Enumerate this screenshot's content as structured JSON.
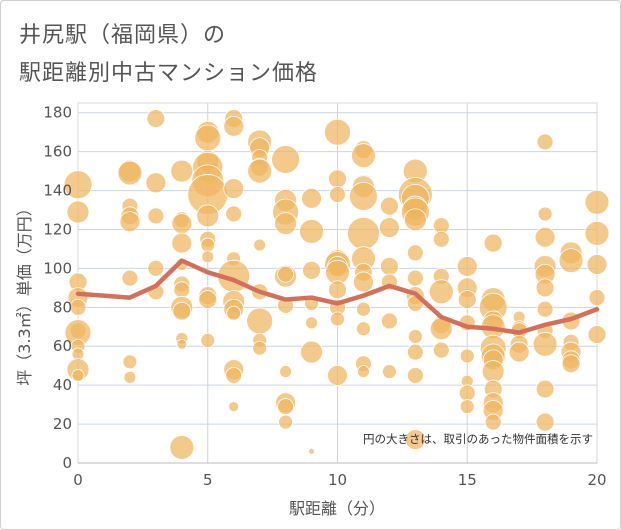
{
  "title_line1": "井尻駅（福岡県）の",
  "title_line2": "駅距離別中古マンション価格",
  "chart_data": {
    "type": "scatter",
    "xlabel": "駅距離（分）",
    "ylabel": "坪（3.3㎡）単価（万円）",
    "xlim": [
      0,
      20
    ],
    "ylim": [
      0,
      185
    ],
    "xticks": [
      0,
      5,
      10,
      15,
      20
    ],
    "yticks": [
      0,
      20,
      40,
      60,
      80,
      100,
      120,
      140,
      160,
      180
    ],
    "grid": true,
    "note": "円の大きさは、取引のあった物件面積を示す",
    "colors": {
      "bubble": "#f0b560",
      "line": "#d4705a",
      "grid": "#c9d6e6"
    },
    "bubble_series": {
      "x": [
        0,
        0,
        0,
        0,
        0,
        0,
        0,
        0,
        0,
        0,
        0,
        2,
        2,
        2,
        2,
        2,
        2,
        2,
        2,
        3,
        3,
        3,
        3,
        3,
        4,
        4,
        4,
        4,
        4,
        4,
        4,
        4,
        4,
        4,
        4,
        4,
        5,
        5,
        5,
        5,
        5,
        5,
        5,
        5,
        5,
        5,
        5,
        5,
        5,
        6,
        6,
        6,
        6,
        6,
        6,
        6,
        6,
        6,
        6,
        6,
        6,
        7,
        7,
        7,
        7,
        7,
        7,
        7,
        7,
        7,
        7,
        8,
        8,
        8,
        8,
        8,
        8,
        8,
        8,
        8,
        8,
        8,
        9,
        9,
        9,
        9,
        9,
        9,
        9,
        10,
        10,
        10,
        10,
        10,
        10,
        10,
        10,
        10,
        10,
        10,
        11,
        11,
        11,
        11,
        11,
        11,
        11,
        11,
        11,
        11,
        11,
        11,
        12,
        12,
        12,
        12,
        12,
        12,
        13,
        13,
        13,
        13,
        13,
        13,
        13,
        13,
        13,
        13,
        13,
        13,
        13,
        13,
        14,
        14,
        14,
        14,
        14,
        14,
        14,
        15,
        15,
        15,
        15,
        15,
        15,
        15,
        15,
        16,
        16,
        16,
        16,
        16,
        16,
        16,
        16,
        16,
        16,
        16,
        16,
        16,
        17,
        17,
        17,
        17,
        17,
        18,
        18,
        18,
        18,
        18,
        18,
        18,
        18,
        18,
        18,
        18,
        19,
        19,
        19,
        19,
        19,
        19,
        19,
        20,
        20,
        20,
        20,
        20
      ],
      "y": [
        143,
        129,
        93,
        85,
        80,
        68,
        67,
        60,
        56,
        48,
        45,
        150,
        149,
        132,
        127,
        124,
        95,
        52,
        44,
        177,
        144,
        127,
        100,
        88,
        150,
        125,
        123,
        113,
        92,
        89,
        80,
        78,
        64,
        61,
        8,
        102,
        170,
        167,
        155,
        152,
        145,
        138,
        127,
        115,
        112,
        106,
        86,
        84,
        63,
        177,
        173,
        141,
        128,
        105,
        96,
        83,
        79,
        77,
        48,
        45,
        29,
        165,
        162,
        157,
        152,
        150,
        112,
        88,
        73,
        63,
        59,
        156,
        135,
        129,
        123,
        96,
        97,
        81,
        47,
        31,
        29,
        21,
        136,
        119,
        99,
        82,
        72,
        57,
        6,
        170,
        146,
        138,
        104,
        102,
        101,
        98,
        89,
        80,
        74,
        45,
        161,
        158,
        142,
        137,
        118,
        105,
        98,
        93,
        79,
        69,
        51,
        47,
        132,
        121,
        101,
        93,
        73,
        47,
        150,
        138,
        136,
        131,
        129,
        125,
        108,
        95,
        86,
        82,
        65,
        57,
        45,
        12,
        122,
        115,
        96,
        88,
        71,
        69,
        58,
        101,
        90,
        84,
        72,
        55,
        42,
        36,
        29,
        113,
        84,
        80,
        73,
        70,
        59,
        55,
        53,
        47,
        38,
        31,
        27,
        21,
        75,
        69,
        68,
        61,
        57,
        165,
        128,
        116,
        101,
        97,
        90,
        79,
        68,
        61,
        38,
        21,
        108,
        104,
        73,
        62,
        57,
        53,
        51,
        134,
        118,
        102,
        85,
        66
      ],
      "size": [
        14,
        11,
        9,
        10,
        8,
        8,
        13,
        7,
        6,
        11,
        6,
        11,
        12,
        8,
        9,
        10,
        8,
        7,
        6,
        9,
        10,
        8,
        8,
        8,
        11,
        8,
        10,
        10,
        8,
        8,
        11,
        9,
        6,
        5,
        12,
        6,
        11,
        13,
        11,
        15,
        16,
        20,
        11,
        8,
        7,
        6,
        9,
        9,
        7,
        9,
        10,
        10,
        8,
        7,
        16,
        11,
        10,
        7,
        10,
        8,
        5,
        12,
        10,
        8,
        9,
        12,
        6,
        8,
        13,
        7,
        7,
        14,
        11,
        13,
        11,
        11,
        8,
        8,
        6,
        10,
        8,
        7,
        10,
        12,
        9,
        7,
        6,
        11,
        3,
        13,
        9,
        8,
        11,
        13,
        10,
        12,
        9,
        8,
        7,
        10,
        9,
        12,
        11,
        14,
        16,
        12,
        9,
        10,
        7,
        7,
        8,
        6,
        9,
        10,
        9,
        8,
        8,
        7,
        12,
        17,
        14,
        12,
        14,
        11,
        8,
        8,
        9,
        8,
        7,
        8,
        8,
        10,
        8,
        8,
        8,
        12,
        9,
        11,
        8,
        10,
        10,
        9,
        8,
        7,
        6,
        8,
        7,
        9,
        12,
        14,
        10,
        12,
        13,
        12,
        10,
        11,
        9,
        10,
        10,
        8,
        6,
        8,
        8,
        9,
        10,
        8,
        7,
        10,
        11,
        10,
        9,
        8,
        8,
        12,
        9,
        9,
        11,
        12,
        9,
        8,
        10,
        9,
        9,
        12,
        12,
        10,
        8,
        9
      ]
    },
    "line_series": {
      "x": [
        0,
        2,
        3,
        4,
        5,
        6,
        7,
        8,
        9,
        10,
        11,
        12,
        13,
        14,
        15,
        16,
        17,
        18,
        19,
        20
      ],
      "y": [
        87,
        85,
        91,
        104,
        98,
        94,
        88,
        84,
        85,
        82,
        86,
        91,
        87,
        75,
        70,
        69,
        67,
        71,
        74,
        79
      ]
    }
  }
}
